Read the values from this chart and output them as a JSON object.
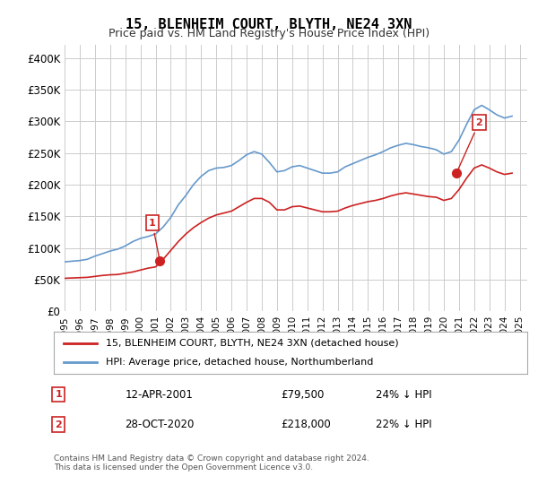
{
  "title": "15, BLENHEIM COURT, BLYTH, NE24 3XN",
  "subtitle": "Price paid vs. HM Land Registry's House Price Index (HPI)",
  "ylabel_prefix": "£",
  "yticks": [
    0,
    50000,
    100000,
    150000,
    200000,
    250000,
    300000,
    350000,
    400000
  ],
  "ytick_labels": [
    "£0",
    "£50K",
    "£100K",
    "£150K",
    "£200K",
    "£250K",
    "£300K",
    "£350K",
    "£400K"
  ],
  "hpi_color": "#6699cc",
  "price_color": "#cc2222",
  "marker1_color": "#cc2222",
  "marker2_color": "#cc2222",
  "background_color": "#ffffff",
  "grid_color": "#cccccc",
  "legend_label_price": "15, BLENHEIM COURT, BLYTH, NE24 3XN (detached house)",
  "legend_label_hpi": "HPI: Average price, detached house, Northumberland",
  "annotation1_label": "1",
  "annotation1_date": "12-APR-2001",
  "annotation1_price": "£79,500",
  "annotation1_pct": "24% ↓ HPI",
  "annotation2_label": "2",
  "annotation2_date": "28-OCT-2020",
  "annotation2_price": "£218,000",
  "annotation2_pct": "22% ↓ HPI",
  "footer": "Contains HM Land Registry data © Crown copyright and database right 2024.\nThis data is licensed under the Open Government Licence v3.0.",
  "xmin": 1995.0,
  "xmax": 2025.5,
  "ymin": 0,
  "ymax": 420000,
  "marker1_x": 2001.28,
  "marker1_y": 79500,
  "marker2_x": 2020.83,
  "marker2_y": 218000,
  "hpi_x": [
    1995.0,
    1995.5,
    1996.0,
    1996.5,
    1997.0,
    1997.5,
    1998.0,
    1998.5,
    1999.0,
    1999.5,
    2000.0,
    2000.5,
    2001.0,
    2001.5,
    2002.0,
    2002.5,
    2003.0,
    2003.5,
    2004.0,
    2004.5,
    2005.0,
    2005.5,
    2006.0,
    2006.5,
    2007.0,
    2007.5,
    2008.0,
    2008.5,
    2009.0,
    2009.5,
    2010.0,
    2010.5,
    2011.0,
    2011.5,
    2012.0,
    2012.5,
    2013.0,
    2013.5,
    2014.0,
    2014.5,
    2015.0,
    2015.5,
    2016.0,
    2016.5,
    2017.0,
    2017.5,
    2018.0,
    2018.5,
    2019.0,
    2019.5,
    2020.0,
    2020.5,
    2021.0,
    2021.5,
    2022.0,
    2022.5,
    2023.0,
    2023.5,
    2024.0,
    2024.5
  ],
  "hpi_y": [
    78000,
    79000,
    80000,
    82000,
    87000,
    91000,
    95000,
    98000,
    103000,
    110000,
    115000,
    118000,
    122000,
    133000,
    148000,
    168000,
    183000,
    200000,
    213000,
    222000,
    226000,
    227000,
    230000,
    238000,
    247000,
    252000,
    248000,
    235000,
    220000,
    222000,
    228000,
    230000,
    226000,
    222000,
    218000,
    218000,
    220000,
    228000,
    233000,
    238000,
    243000,
    247000,
    252000,
    258000,
    262000,
    265000,
    263000,
    260000,
    258000,
    255000,
    248000,
    252000,
    270000,
    295000,
    318000,
    325000,
    318000,
    310000,
    305000,
    308000
  ],
  "price_x": [
    1995.0,
    1995.5,
    1996.0,
    1996.5,
    1997.0,
    1997.5,
    1998.0,
    1998.5,
    1999.0,
    1999.5,
    2000.0,
    2000.5,
    2001.0,
    2001.5,
    2002.0,
    2002.5,
    2003.0,
    2003.5,
    2004.0,
    2004.5,
    2005.0,
    2005.5,
    2006.0,
    2006.5,
    2007.0,
    2007.5,
    2008.0,
    2008.5,
    2009.0,
    2009.5,
    2010.0,
    2010.5,
    2011.0,
    2011.5,
    2012.0,
    2012.5,
    2013.0,
    2013.5,
    2014.0,
    2014.5,
    2015.0,
    2015.5,
    2016.0,
    2016.5,
    2017.0,
    2017.5,
    2018.0,
    2018.5,
    2019.0,
    2019.5,
    2020.0,
    2020.5,
    2021.0,
    2021.5,
    2022.0,
    2022.5,
    2023.0,
    2023.5,
    2024.0,
    2024.5
  ],
  "price_y": [
    52000,
    52500,
    53000,
    53500,
    55000,
    56500,
    57500,
    58000,
    60000,
    62000,
    65000,
    68000,
    70000,
    82000,
    96000,
    110000,
    122000,
    132000,
    140000,
    147000,
    152000,
    155000,
    158000,
    165000,
    172000,
    178000,
    178000,
    172000,
    160000,
    160000,
    165000,
    166000,
    163000,
    160000,
    157000,
    157000,
    158000,
    163000,
    167000,
    170000,
    173000,
    175000,
    178000,
    182000,
    185000,
    187000,
    185000,
    183000,
    181000,
    180000,
    175000,
    178000,
    192000,
    210000,
    226000,
    231000,
    226000,
    220000,
    216000,
    218000
  ]
}
